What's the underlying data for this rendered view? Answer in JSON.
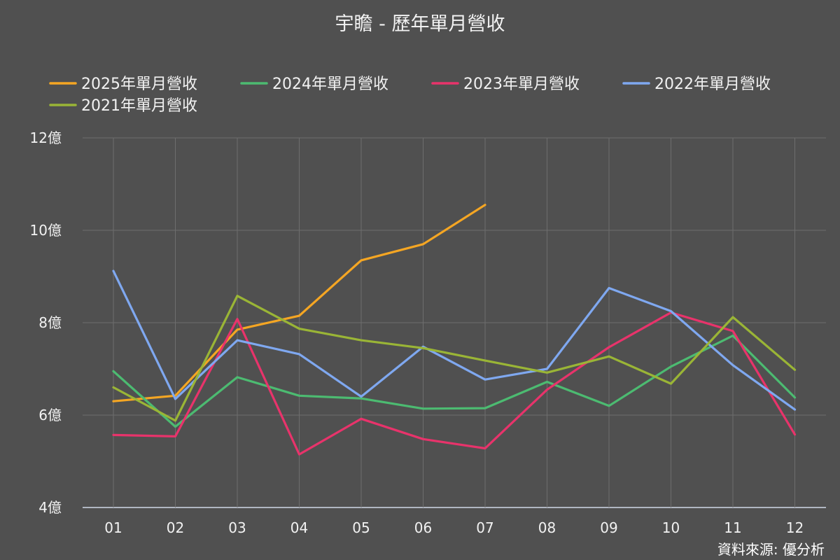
{
  "chart_data": {
    "type": "line",
    "title": "宇瞻 - 歷年單月營收",
    "source": "資料來源: 優分析",
    "categories": [
      "01",
      "02",
      "03",
      "04",
      "05",
      "06",
      "07",
      "08",
      "09",
      "10",
      "11",
      "12"
    ],
    "y_unit": "億",
    "ylim": [
      4,
      12
    ],
    "yticks": [
      4,
      6,
      8,
      10,
      12
    ],
    "ytick_labels": [
      "4億",
      "6億",
      "8億",
      "10億",
      "12億"
    ],
    "grid": true,
    "legend_position": "top",
    "series": [
      {
        "name": "2025年單月營收",
        "color": "#f5a623",
        "values": [
          6.3,
          6.42,
          7.85,
          8.15,
          9.35,
          9.7,
          10.55,
          null,
          null,
          null,
          null,
          null
        ]
      },
      {
        "name": "2024年單月營收",
        "color": "#4cbb71",
        "values": [
          6.95,
          5.75,
          6.82,
          6.42,
          6.36,
          6.14,
          6.15,
          6.72,
          6.2,
          7.05,
          7.72,
          6.38
        ]
      },
      {
        "name": "2023年單月營收",
        "color": "#e8336b",
        "values": [
          5.57,
          5.54,
          8.08,
          5.15,
          5.92,
          5.48,
          5.28,
          6.55,
          7.47,
          8.22,
          7.82,
          5.58
        ]
      },
      {
        "name": "2022年單月營收",
        "color": "#7fa8f0",
        "values": [
          9.12,
          6.35,
          7.62,
          7.32,
          6.4,
          7.48,
          6.77,
          7.0,
          8.75,
          8.25,
          7.08,
          6.12
        ]
      },
      {
        "name": "2021年單月營收",
        "color": "#9ab536",
        "values": [
          6.6,
          5.88,
          8.58,
          7.87,
          7.62,
          7.45,
          7.18,
          6.92,
          7.27,
          6.68,
          8.12,
          6.98
        ]
      }
    ]
  }
}
